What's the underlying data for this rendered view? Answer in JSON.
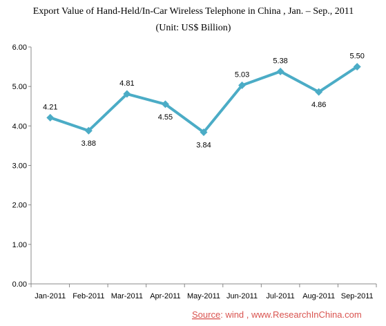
{
  "chart_data": {
    "type": "line",
    "title": "Export Value of Hand-Held/In-Car Wireless Telephone in China , Jan. – Sep., 2011",
    "subtitle": "(Unit: US$ Billion)",
    "categories": [
      "Jan-2011",
      "Feb-2011",
      "Mar-2011",
      "Apr-2011",
      "May-2011",
      "Jun-2011",
      "Jul-2011",
      "Aug-2011",
      "Sep-2011"
    ],
    "values": [
      4.21,
      3.88,
      4.81,
      4.55,
      3.84,
      5.03,
      5.38,
      4.86,
      5.5
    ],
    "data_labels": [
      "4.21",
      "3.88",
      "4.81",
      "4.55",
      "3.84",
      "5.03",
      "5.38",
      "4.86",
      "5.50"
    ],
    "yticks": [
      "0.00",
      "1.00",
      "2.00",
      "3.00",
      "4.00",
      "5.00",
      "6.00"
    ],
    "ylim": [
      0,
      6
    ],
    "grid": false,
    "legend": "none",
    "line_color": "#4bacc6"
  },
  "source": {
    "label": "Source",
    "text": ": wind  , www.ResearchInChina.com",
    "color": "#d9534f"
  }
}
